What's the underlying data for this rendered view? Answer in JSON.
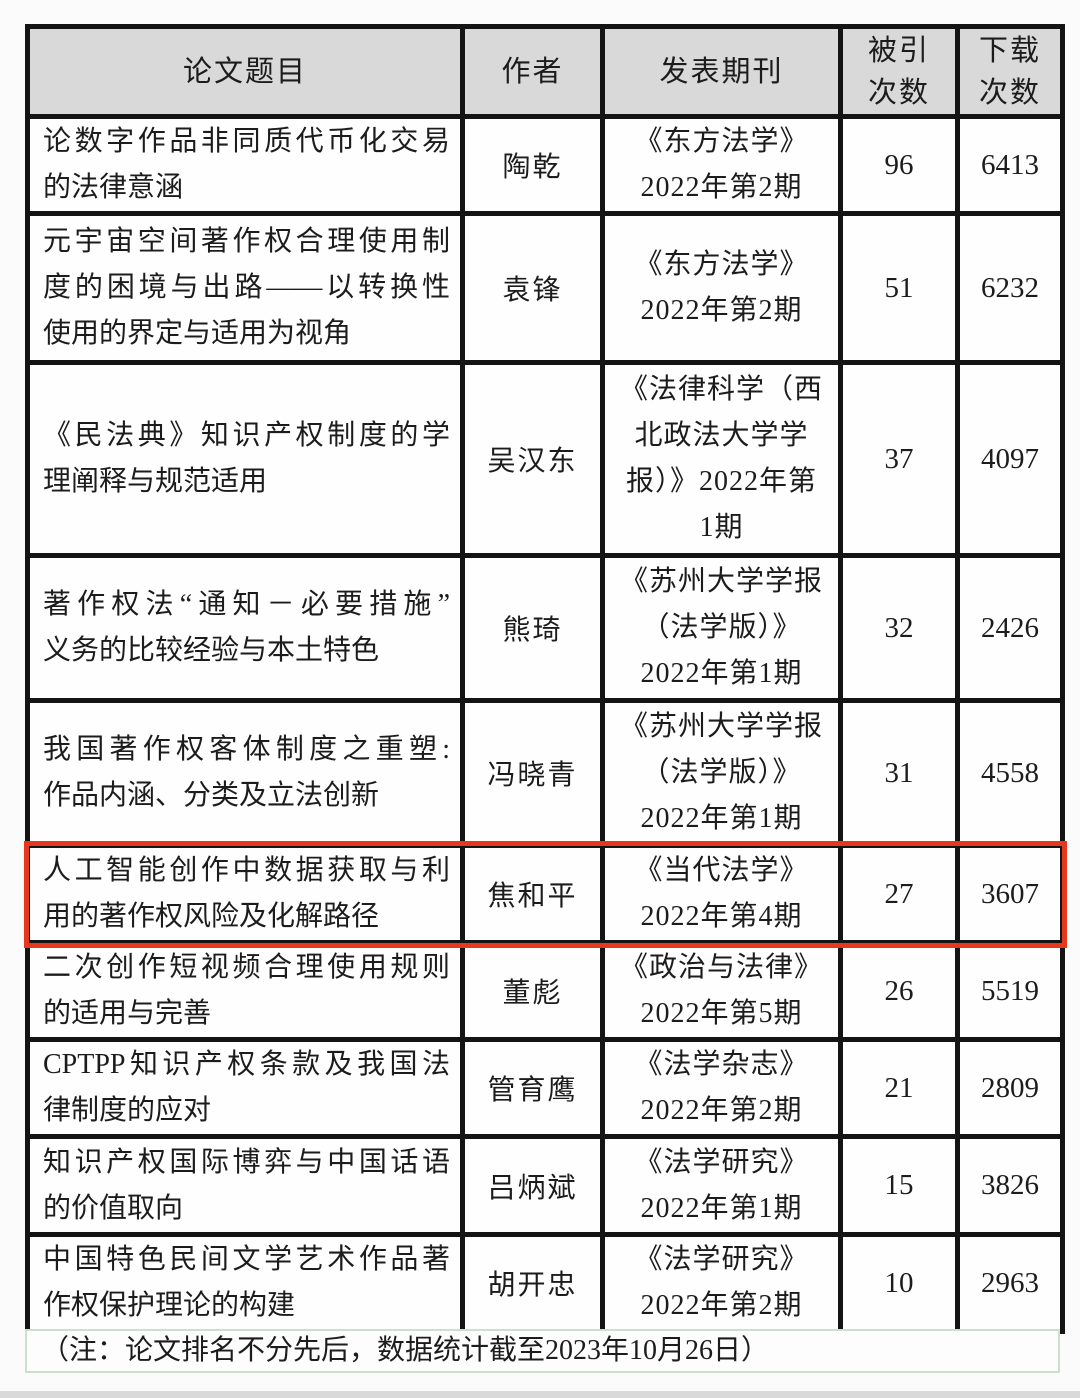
{
  "table": {
    "columns": [
      {
        "key": "title",
        "label": "论文题目",
        "label_lines": [
          "论文题目"
        ]
      },
      {
        "key": "author",
        "label": "作者",
        "label_lines": [
          "作者"
        ]
      },
      {
        "key": "journal",
        "label": "发表期刊",
        "label_lines": [
          "发表期刊"
        ]
      },
      {
        "key": "citations",
        "label": "被引次数",
        "label_lines": [
          "被引",
          "次数"
        ]
      },
      {
        "key": "downloads",
        "label": "下载次数",
        "label_lines": [
          "下载",
          "次数"
        ]
      }
    ],
    "rows": [
      {
        "title": "论数字作品非同质代币化交易的法律意涵",
        "title_lines": [
          "论数字作品非同质代币化交易",
          "的法律意涵"
        ],
        "author": "陶乾",
        "journal": "《东方法学》2022年第2期",
        "journal_lines": [
          "《东方法学》",
          "2022年第2期"
        ],
        "citations": "96",
        "downloads": "6413",
        "highlighted": false
      },
      {
        "title": "元宇宙空间著作权合理使用制度的困境与出路——以转换性使用的界定与适用为视角",
        "title_lines": [
          "元宇宙空间著作权合理使用制",
          "度的困境与出路——以转换性",
          "使用的界定与适用为视角"
        ],
        "author": "袁锋",
        "journal": "《东方法学》2022年第2期",
        "journal_lines": [
          "《东方法学》",
          "2022年第2期"
        ],
        "citations": "51",
        "downloads": "6232",
        "highlighted": false
      },
      {
        "title": "《民法典》知识产权制度的学理阐释与规范适用",
        "title_lines": [
          "《民法典》知识产权制度的学",
          "理阐释与规范适用"
        ],
        "author": "吴汉东",
        "journal": "《法律科学（西北政法大学学报）》2022年第1期",
        "journal_lines": [
          "《法律科学（西",
          "北政法大学学",
          "报）》2022年第",
          "1期"
        ],
        "citations": "37",
        "downloads": "4097",
        "highlighted": false
      },
      {
        "title": "著作权法“通知－必要措施”义务的比较经验与本土特色",
        "title_lines": [
          "著作权法“通知－必要措施”",
          "义务的比较经验与本土特色"
        ],
        "author": "熊琦",
        "journal": "《苏州大学学报（法学版）》2022年第1期",
        "journal_lines": [
          "《苏州大学学报",
          "（法学版）》",
          "2022年第1期"
        ],
        "citations": "32",
        "downloads": "2426",
        "highlighted": false
      },
      {
        "title": "我国著作权客体制度之重塑:作品内涵、分类及立法创新",
        "title_lines": [
          "我国著作权客体制度之重塑:",
          "作品内涵、分类及立法创新"
        ],
        "author": "冯晓青",
        "journal": "《苏州大学学报（法学版）》2022年第1期",
        "journal_lines": [
          "《苏州大学学报",
          "（法学版）》",
          "2022年第1期"
        ],
        "citations": "31",
        "downloads": "4558",
        "highlighted": false
      },
      {
        "title": "人工智能创作中数据获取与利用的著作权风险及化解路径",
        "title_lines": [
          "人工智能创作中数据获取与利",
          "用的著作权风险及化解路径"
        ],
        "author": "焦和平",
        "journal": "《当代法学》2022年第4期",
        "journal_lines": [
          "《当代法学》",
          "2022年第4期"
        ],
        "citations": "27",
        "downloads": "3607",
        "highlighted": true
      },
      {
        "title": "二次创作短视频合理使用规则的适用与完善",
        "title_lines": [
          "二次创作短视频合理使用规则",
          "的适用与完善"
        ],
        "author": "董彪",
        "journal": "《政治与法律》2022年第5期",
        "journal_lines": [
          "《政治与法律》",
          "2022年第5期"
        ],
        "citations": "26",
        "downloads": "5519",
        "highlighted": false
      },
      {
        "title": "CPTPP知识产权条款及我国法律制度的应对",
        "title_lines": [
          "CPTPP知识产权条款及我国法",
          "律制度的应对"
        ],
        "author": "管育鹰",
        "journal": "《法学杂志》2022年第2期",
        "journal_lines": [
          "《法学杂志》",
          "2022年第2期"
        ],
        "citations": "21",
        "downloads": "2809",
        "highlighted": false
      },
      {
        "title": "知识产权国际博弈与中国话语的价值取向",
        "title_lines": [
          "知识产权国际博弈与中国话语",
          "的价值取向"
        ],
        "author": "吕炳斌",
        "journal": "《法学研究》2022年第1期",
        "journal_lines": [
          "《法学研究》",
          "2022年第1期"
        ],
        "citations": "15",
        "downloads": "3826",
        "highlighted": false
      },
      {
        "title": "中国特色民间文学艺术作品著作权保护理论的构建",
        "title_lines": [
          "中国特色民间文学艺术作品著",
          "作权保护理论的构建"
        ],
        "author": "胡开忠",
        "journal": "《法学研究》2022年第2期",
        "journal_lines": [
          "《法学研究》",
          "2022年第2期"
        ],
        "citations": "10",
        "downloads": "2963",
        "highlighted": false
      }
    ]
  },
  "footnote": "（注：论文排名不分先后，数据统计截至2023年10月26日）",
  "colors": {
    "highlight_red": "#e5381c",
    "header_gray": "#d9d9d9",
    "border_black": "#141414",
    "footnote_green": "#cde0cd",
    "bottom_strip": "#d9d9d9"
  }
}
